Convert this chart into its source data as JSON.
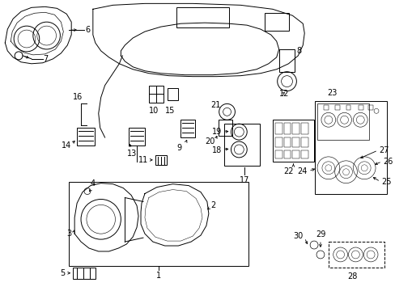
{
  "bg_color": "#ffffff",
  "fig_width": 4.89,
  "fig_height": 3.6,
  "dpi": 100,
  "line_color": "#000000",
  "text_color": "#000000",
  "font_size": 7.0
}
